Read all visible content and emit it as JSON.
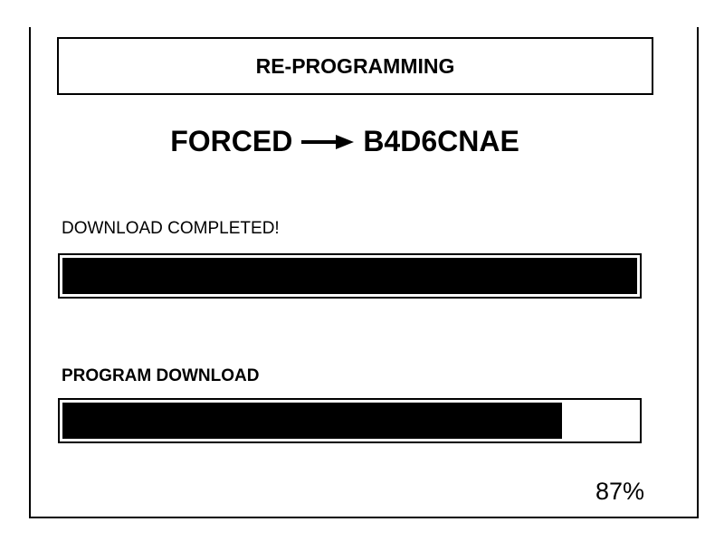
{
  "header": {
    "title": "RE-PROGRAMMING"
  },
  "mode": {
    "from": "FORCED",
    "to": "B4D6CNAE"
  },
  "download": {
    "label": "DOWNLOAD COMPLETED!",
    "progress": 100
  },
  "program": {
    "label": "PROGRAM DOWNLOAD",
    "progress": {
      "value": 87,
      "label": "87%"
    }
  }
}
